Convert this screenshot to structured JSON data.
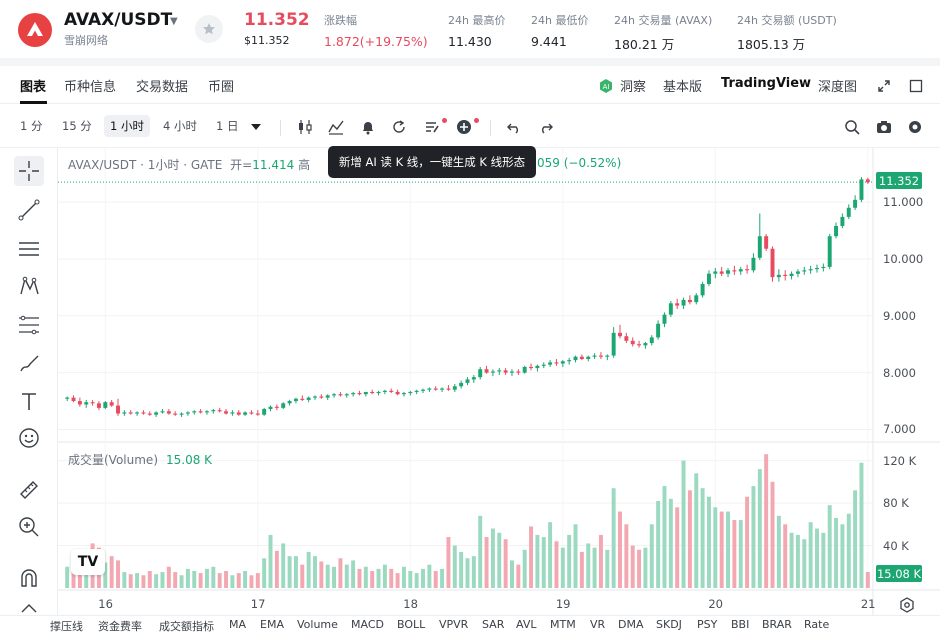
{
  "header": {
    "pair": "AVAX/USDT",
    "sub": "雪崩网络",
    "price": "11.352",
    "price_usd": "$11.352",
    "stats": [
      {
        "label": "涨跌幅",
        "value": "1.872(+19.75%)",
        "red": true
      },
      {
        "label": "24h 最高价",
        "value": "11.430",
        "red": false
      },
      {
        "label": "24h 最低价",
        "value": "9.441",
        "red": false
      },
      {
        "label": "24h 交易量 (AVAX)",
        "value": "180.21 万",
        "red": false
      },
      {
        "label": "24h 交易额 (USDT)",
        "value": "1805.13 万",
        "red": false
      }
    ]
  },
  "tabs": [
    "图表",
    "币种信息",
    "交易数据",
    "币圈"
  ],
  "right_tabs": {
    "insight": "洞察",
    "basic": "基本版",
    "tradingview": "TradingView",
    "depth": "深度图"
  },
  "toolbar": {
    "timeframes": [
      "1 分",
      "15 分",
      "1 小时",
      "4 小时",
      "1 日"
    ],
    "selected": "1 小时"
  },
  "legend": {
    "symbol": "AVAX/USDT · 1小时 · GATE",
    "open_label": "开=",
    "open_value": "11.414",
    "partial_label": "高",
    "change_tail": "059 (−0.52%)"
  },
  "tooltip": "新增 AI 读 K 线，一键生成 K 线形态",
  "volume": {
    "title": "成交量(Volume)",
    "value": "15.08 K"
  },
  "price_badge": "11.352",
  "volume_badge": "15.08 K",
  "indicators": [
    "撑压线",
    "资金费率",
    "成交额指标",
    "MA",
    "EMA",
    "Volume",
    "MACD",
    "BOLL",
    "VPVR",
    "SAR",
    "AVL",
    "MTM",
    "VR",
    "DMA",
    "SKDJ",
    "PSY",
    "BBI",
    "BRAR",
    "Rate"
  ],
  "colors": {
    "up": "#1ba672",
    "down": "#e64b5f",
    "up_vol": "#9bd9c0",
    "down_vol": "#f3a7b1"
  },
  "chart_data": {
    "type": "candlestick",
    "x_ticks": [
      "16",
      "17",
      "18",
      "19",
      "20",
      "21"
    ],
    "y_ticks": [
      "7.000",
      "8.000",
      "9.000",
      "10.000",
      "11.000"
    ],
    "y_range": [
      6.85,
      11.6
    ],
    "vol_ticks": [
      "40 K",
      "80 K",
      "120 K"
    ],
    "vol_range": [
      0,
      130000
    ],
    "last_price": 11.352,
    "candles": [
      [
        7.54,
        7.58,
        7.5,
        7.56,
        20000
      ],
      [
        7.56,
        7.6,
        7.48,
        7.5,
        32000
      ],
      [
        7.5,
        7.56,
        7.4,
        7.44,
        28000
      ],
      [
        7.44,
        7.52,
        7.38,
        7.48,
        35000
      ],
      [
        7.48,
        7.52,
        7.42,
        7.46,
        42000
      ],
      [
        7.46,
        7.5,
        7.34,
        7.38,
        38000
      ],
      [
        7.38,
        7.5,
        7.36,
        7.48,
        24000
      ],
      [
        7.48,
        7.52,
        7.4,
        7.42,
        30000
      ],
      [
        7.42,
        7.54,
        7.24,
        7.28,
        26000
      ],
      [
        7.28,
        7.34,
        7.24,
        7.3,
        15000
      ],
      [
        7.3,
        7.34,
        7.26,
        7.28,
        13000
      ],
      [
        7.28,
        7.32,
        7.24,
        7.3,
        14000
      ],
      [
        7.3,
        7.34,
        7.26,
        7.28,
        12000
      ],
      [
        7.28,
        7.32,
        7.24,
        7.26,
        16000
      ],
      [
        7.26,
        7.32,
        7.22,
        7.3,
        13000
      ],
      [
        7.3,
        7.36,
        7.28,
        7.32,
        15000
      ],
      [
        7.32,
        7.36,
        7.26,
        7.28,
        20000
      ],
      [
        7.28,
        7.32,
        7.24,
        7.26,
        15000
      ],
      [
        7.26,
        7.3,
        7.22,
        7.28,
        12000
      ],
      [
        7.28,
        7.32,
        7.24,
        7.3,
        18000
      ],
      [
        7.3,
        7.34,
        7.26,
        7.32,
        16000
      ],
      [
        7.32,
        7.36,
        7.28,
        7.3,
        14000
      ],
      [
        7.3,
        7.34,
        7.26,
        7.32,
        18000
      ],
      [
        7.32,
        7.36,
        7.28,
        7.34,
        20000
      ],
      [
        7.34,
        7.38,
        7.3,
        7.32,
        14000
      ],
      [
        7.32,
        7.36,
        7.26,
        7.28,
        16000
      ],
      [
        7.28,
        7.34,
        7.24,
        7.3,
        12000
      ],
      [
        7.3,
        7.34,
        7.24,
        7.26,
        14000
      ],
      [
        7.26,
        7.32,
        7.24,
        7.3,
        16000
      ],
      [
        7.3,
        7.34,
        7.26,
        7.28,
        12000
      ],
      [
        7.28,
        7.34,
        7.24,
        7.26,
        14000
      ],
      [
        7.26,
        7.38,
        7.24,
        7.36,
        28000
      ],
      [
        7.36,
        7.42,
        7.32,
        7.4,
        50000
      ],
      [
        7.4,
        7.44,
        7.34,
        7.38,
        35000
      ],
      [
        7.38,
        7.48,
        7.36,
        7.46,
        42000
      ],
      [
        7.46,
        7.52,
        7.42,
        7.5,
        30000
      ],
      [
        7.5,
        7.56,
        7.46,
        7.54,
        30000
      ],
      [
        7.54,
        7.6,
        7.5,
        7.52,
        22000
      ],
      [
        7.52,
        7.58,
        7.48,
        7.56,
        34000
      ],
      [
        7.56,
        7.6,
        7.52,
        7.58,
        30000
      ],
      [
        7.58,
        7.62,
        7.54,
        7.56,
        25000
      ],
      [
        7.56,
        7.62,
        7.52,
        7.6,
        22000
      ],
      [
        7.6,
        7.64,
        7.56,
        7.62,
        20000
      ],
      [
        7.62,
        7.66,
        7.58,
        7.6,
        28000
      ],
      [
        7.6,
        7.64,
        7.56,
        7.62,
        22000
      ],
      [
        7.62,
        7.66,
        7.58,
        7.64,
        26000
      ],
      [
        7.64,
        7.68,
        7.6,
        7.62,
        18000
      ],
      [
        7.62,
        7.66,
        7.58,
        7.66,
        20000
      ],
      [
        7.66,
        7.7,
        7.62,
        7.64,
        16000
      ],
      [
        7.64,
        7.68,
        7.6,
        7.66,
        18000
      ],
      [
        7.66,
        7.7,
        7.62,
        7.68,
        22000
      ],
      [
        7.68,
        7.72,
        7.64,
        7.66,
        18000
      ],
      [
        7.66,
        7.7,
        7.6,
        7.62,
        14000
      ],
      [
        7.62,
        7.66,
        7.58,
        7.64,
        20000
      ],
      [
        7.64,
        7.68,
        7.6,
        7.66,
        16000
      ],
      [
        7.66,
        7.7,
        7.62,
        7.68,
        14000
      ],
      [
        7.68,
        7.72,
        7.64,
        7.7,
        18000
      ],
      [
        7.7,
        7.74,
        7.66,
        7.72,
        22000
      ],
      [
        7.72,
        7.76,
        7.68,
        7.7,
        16000
      ],
      [
        7.7,
        7.74,
        7.66,
        7.72,
        18000
      ],
      [
        7.72,
        7.78,
        7.68,
        7.7,
        48000
      ],
      [
        7.7,
        7.8,
        7.66,
        7.76,
        40000
      ],
      [
        7.76,
        7.86,
        7.72,
        7.82,
        34000
      ],
      [
        7.82,
        7.92,
        7.78,
        7.88,
        28000
      ],
      [
        7.88,
        7.96,
        7.82,
        7.92,
        30000
      ],
      [
        7.92,
        8.1,
        7.88,
        8.06,
        68000
      ],
      [
        8.06,
        8.12,
        7.98,
        8.0,
        48000
      ],
      [
        8.0,
        8.06,
        7.94,
        8.02,
        56000
      ],
      [
        8.02,
        8.08,
        7.96,
        8.04,
        52000
      ],
      [
        8.04,
        8.08,
        7.96,
        8.0,
        46000
      ],
      [
        8.0,
        8.06,
        7.94,
        8.02,
        26000
      ],
      [
        8.02,
        8.06,
        7.96,
        8.0,
        22000
      ],
      [
        8.0,
        8.12,
        7.98,
        8.1,
        36000
      ],
      [
        8.1,
        8.16,
        8.04,
        8.08,
        58000
      ],
      [
        8.08,
        8.14,
        8.02,
        8.12,
        50000
      ],
      [
        8.12,
        8.18,
        8.08,
        8.14,
        48000
      ],
      [
        8.14,
        8.22,
        8.1,
        8.18,
        62000
      ],
      [
        8.18,
        8.24,
        8.12,
        8.16,
        44000
      ],
      [
        8.16,
        8.22,
        8.1,
        8.2,
        38000
      ],
      [
        8.2,
        8.26,
        8.14,
        8.22,
        50000
      ],
      [
        8.22,
        8.3,
        8.18,
        8.28,
        60000
      ],
      [
        8.28,
        8.32,
        8.22,
        8.24,
        34000
      ],
      [
        8.24,
        8.3,
        8.2,
        8.28,
        42000
      ],
      [
        8.28,
        8.34,
        8.24,
        8.3,
        38000
      ],
      [
        8.3,
        8.36,
        8.24,
        8.28,
        50000
      ],
      [
        8.28,
        8.32,
        8.22,
        8.3,
        36000
      ],
      [
        8.3,
        8.8,
        8.26,
        8.7,
        94000
      ],
      [
        8.7,
        8.84,
        8.6,
        8.64,
        72000
      ],
      [
        8.64,
        8.7,
        8.52,
        8.56,
        60000
      ],
      [
        8.56,
        8.62,
        8.46,
        8.5,
        40000
      ],
      [
        8.5,
        8.56,
        8.44,
        8.48,
        36000
      ],
      [
        8.48,
        8.54,
        8.42,
        8.52,
        38000
      ],
      [
        8.52,
        8.66,
        8.48,
        8.62,
        60000
      ],
      [
        8.62,
        8.92,
        8.58,
        8.86,
        82000
      ],
      [
        8.86,
        9.06,
        8.8,
        9.02,
        96000
      ],
      [
        9.02,
        9.26,
        8.98,
        9.22,
        84000
      ],
      [
        9.22,
        9.3,
        9.12,
        9.18,
        76000
      ],
      [
        9.18,
        9.32,
        9.12,
        9.28,
        120000
      ],
      [
        9.28,
        9.36,
        9.2,
        9.24,
        92000
      ],
      [
        9.24,
        9.4,
        9.2,
        9.36,
        108000
      ],
      [
        9.36,
        9.6,
        9.32,
        9.56,
        94000
      ],
      [
        9.56,
        9.8,
        9.52,
        9.74,
        86000
      ],
      [
        9.74,
        9.84,
        9.66,
        9.78,
        76000
      ],
      [
        9.78,
        9.86,
        9.7,
        9.74,
        72000
      ],
      [
        9.74,
        9.84,
        9.68,
        9.8,
        72000
      ],
      [
        9.8,
        9.88,
        9.72,
        9.78,
        64000
      ],
      [
        9.78,
        9.86,
        9.72,
        9.82,
        64000
      ],
      [
        9.82,
        9.9,
        9.74,
        9.8,
        86000
      ],
      [
        9.8,
        10.1,
        9.76,
        10.02,
        96000
      ],
      [
        10.02,
        10.8,
        9.98,
        10.4,
        112000
      ],
      [
        10.4,
        10.44,
        10.14,
        10.18,
        126000
      ],
      [
        10.18,
        10.22,
        9.6,
        9.68,
        100000
      ],
      [
        9.68,
        9.82,
        9.6,
        9.72,
        68000
      ],
      [
        9.72,
        9.8,
        9.62,
        9.7,
        60000
      ],
      [
        9.7,
        9.78,
        9.64,
        9.74,
        52000
      ],
      [
        9.74,
        9.82,
        9.68,
        9.78,
        50000
      ],
      [
        9.78,
        9.86,
        9.72,
        9.8,
        46000
      ],
      [
        9.8,
        9.88,
        9.74,
        9.82,
        62000
      ],
      [
        9.82,
        9.9,
        9.76,
        9.84,
        56000
      ],
      [
        9.84,
        9.92,
        9.78,
        9.86,
        52000
      ],
      [
        9.86,
        10.44,
        9.82,
        10.4,
        78000
      ],
      [
        10.4,
        10.64,
        10.36,
        10.58,
        66000
      ],
      [
        10.58,
        10.8,
        10.54,
        10.74,
        60000
      ],
      [
        10.74,
        10.96,
        10.7,
        10.9,
        70000
      ],
      [
        10.9,
        11.12,
        10.86,
        11.04,
        92000
      ],
      [
        11.04,
        11.44,
        11.0,
        11.4,
        118000
      ],
      [
        11.4,
        11.43,
        11.32,
        11.35,
        15080
      ]
    ]
  }
}
